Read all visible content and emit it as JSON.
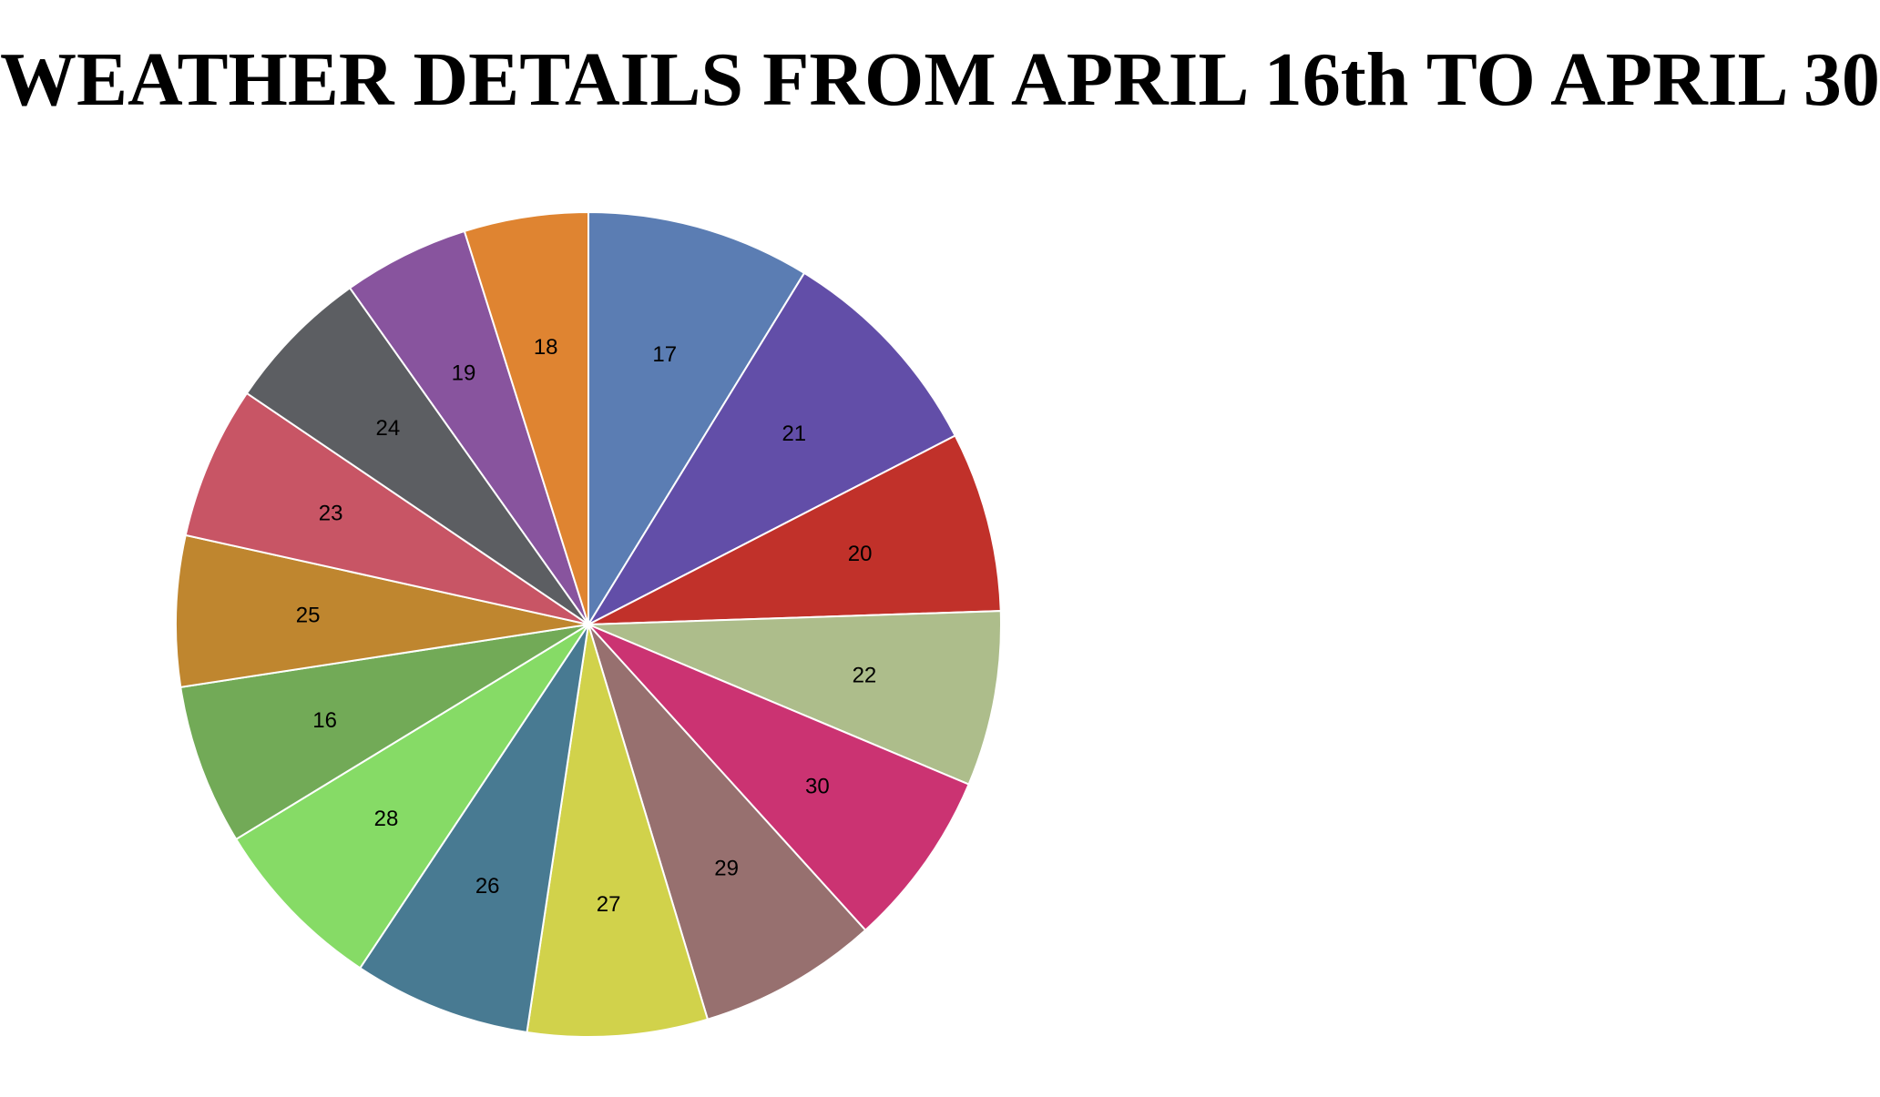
{
  "chart_data": {
    "type": "pie",
    "title": "WEATHER DETAILS FROM APRIL 16th TO APRIL 30",
    "legend": "none",
    "start_angle": "top, clockwise",
    "slices": [
      {
        "label": "17",
        "value": 9.2,
        "color": "#5b7db3"
      },
      {
        "label": "21",
        "value": 9.1,
        "color": "#624ea8"
      },
      {
        "label": "20",
        "value": 7.4,
        "color": "#c1312a"
      },
      {
        "label": "22",
        "value": 7.2,
        "color": "#adbd8b"
      },
      {
        "label": "30",
        "value": 7.3,
        "color": "#cb3372"
      },
      {
        "label": "29",
        "value": 7.4,
        "color": "#97706f"
      },
      {
        "label": "27",
        "value": 7.4,
        "color": "#d1d24b"
      },
      {
        "label": "26",
        "value": 7.3,
        "color": "#487a92"
      },
      {
        "label": "28",
        "value": 7.3,
        "color": "#86db66"
      },
      {
        "label": "16",
        "value": 6.6,
        "color": "#72aa57"
      },
      {
        "label": "25",
        "value": 6.2,
        "color": "#bf862f"
      },
      {
        "label": "23",
        "value": 6.3,
        "color": "#c85565"
      },
      {
        "label": "24",
        "value": 6.0,
        "color": "#5c5e62"
      },
      {
        "label": "19",
        "value": 5.2,
        "color": "#88549e"
      },
      {
        "label": "18",
        "value": 5.1,
        "color": "#df8431"
      }
    ]
  }
}
